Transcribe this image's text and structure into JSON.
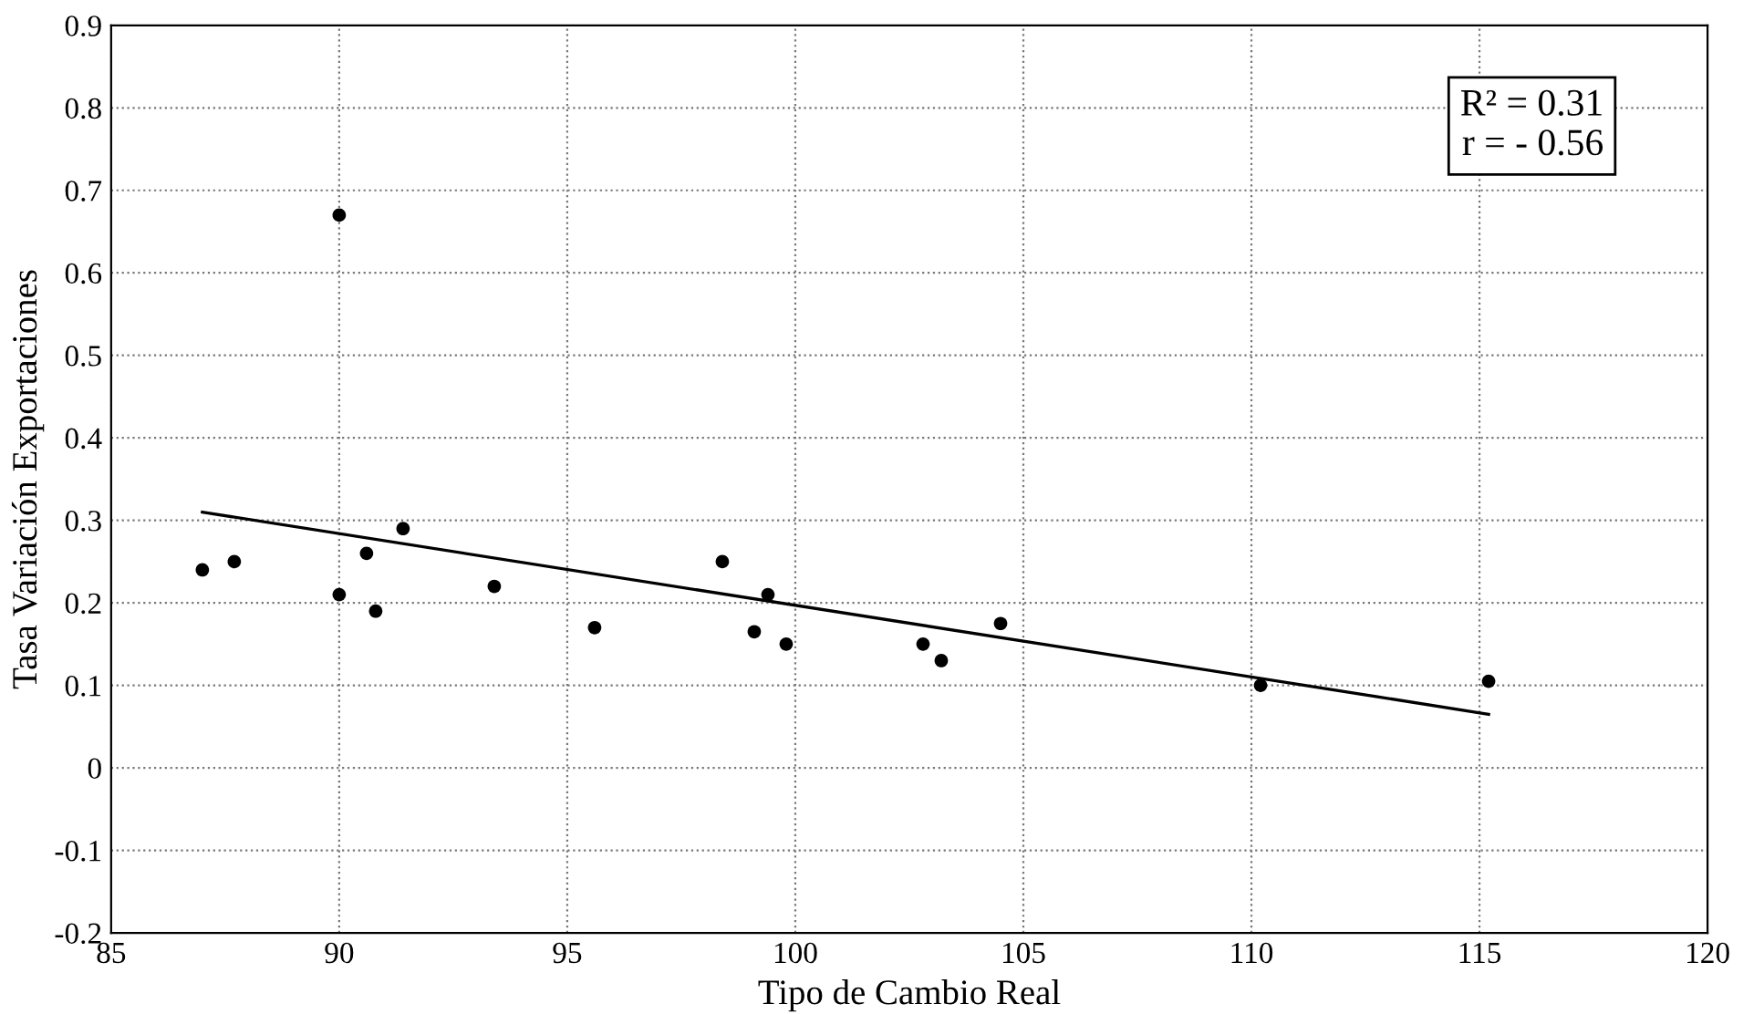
{
  "chart_data": {
    "type": "scatter",
    "xlabel": "Tipo de Cambio Real",
    "ylabel": "Tasa Variación Exportaciones",
    "xlim": [
      85,
      120
    ],
    "xticks": [
      85,
      90,
      95,
      100,
      105,
      110,
      115,
      120
    ],
    "ylim": [
      -0.2,
      0.9
    ],
    "yticks": [
      -0.2,
      -0.1,
      0,
      0.1,
      0.2,
      0.3,
      0.4,
      0.5,
      0.6,
      0.7,
      0.8,
      0.9
    ],
    "grid": true,
    "series": [
      {
        "color": "#000000",
        "marker": "circle",
        "x": [
          87.0,
          87.7,
          90.0,
          90.0,
          90.6,
          90.8,
          91.4,
          93.4,
          95.6,
          98.4,
          99.1,
          99.4,
          99.8,
          102.8,
          103.2,
          104.5,
          110.2,
          115.2
        ],
        "values": [
          0.24,
          0.25,
          0.67,
          0.21,
          0.26,
          0.19,
          0.29,
          0.22,
          0.17,
          0.25,
          0.165,
          0.21,
          0.15,
          0.15,
          0.13,
          0.175,
          0.1,
          0.105
        ]
      },
      {
        "type": "line",
        "color": "#000000",
        "marker": "none",
        "x": [
          87.0,
          115.2
        ],
        "values": [
          0.31,
          0.065
        ]
      }
    ],
    "annotations": [
      "R² = 0.31\nr = - 0.56"
    ]
  }
}
